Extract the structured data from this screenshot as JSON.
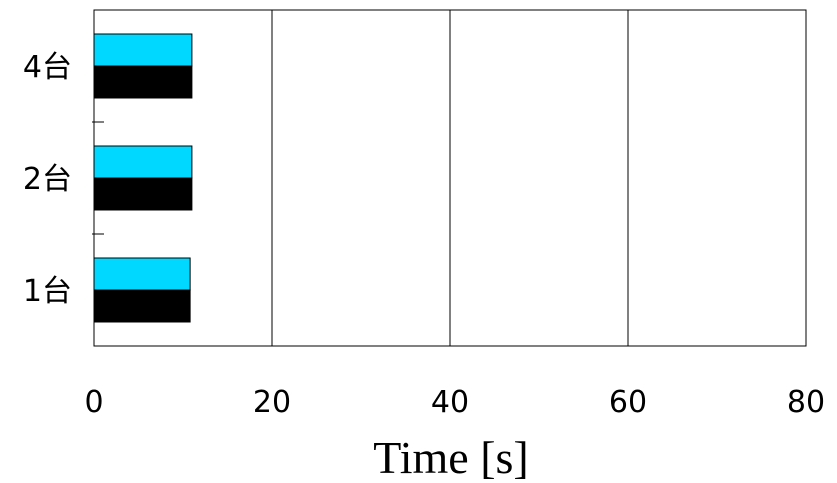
{
  "chart_data": {
    "type": "bar",
    "orientation": "horizontal",
    "categories": [
      "1台",
      "2台",
      "4台"
    ],
    "series": [
      {
        "values": [
          10.8,
          11.0,
          11.0
        ],
        "color": "#00d8ff"
      },
      {
        "values": [
          10.8,
          11.0,
          11.0
        ],
        "color": "#000000"
      }
    ],
    "xlabel": "Time [s]",
    "ylabel": "",
    "xlim": [
      0,
      80
    ],
    "xticks": [
      0,
      20,
      40,
      60,
      80
    ],
    "grid": "vertical",
    "legend": "none"
  }
}
